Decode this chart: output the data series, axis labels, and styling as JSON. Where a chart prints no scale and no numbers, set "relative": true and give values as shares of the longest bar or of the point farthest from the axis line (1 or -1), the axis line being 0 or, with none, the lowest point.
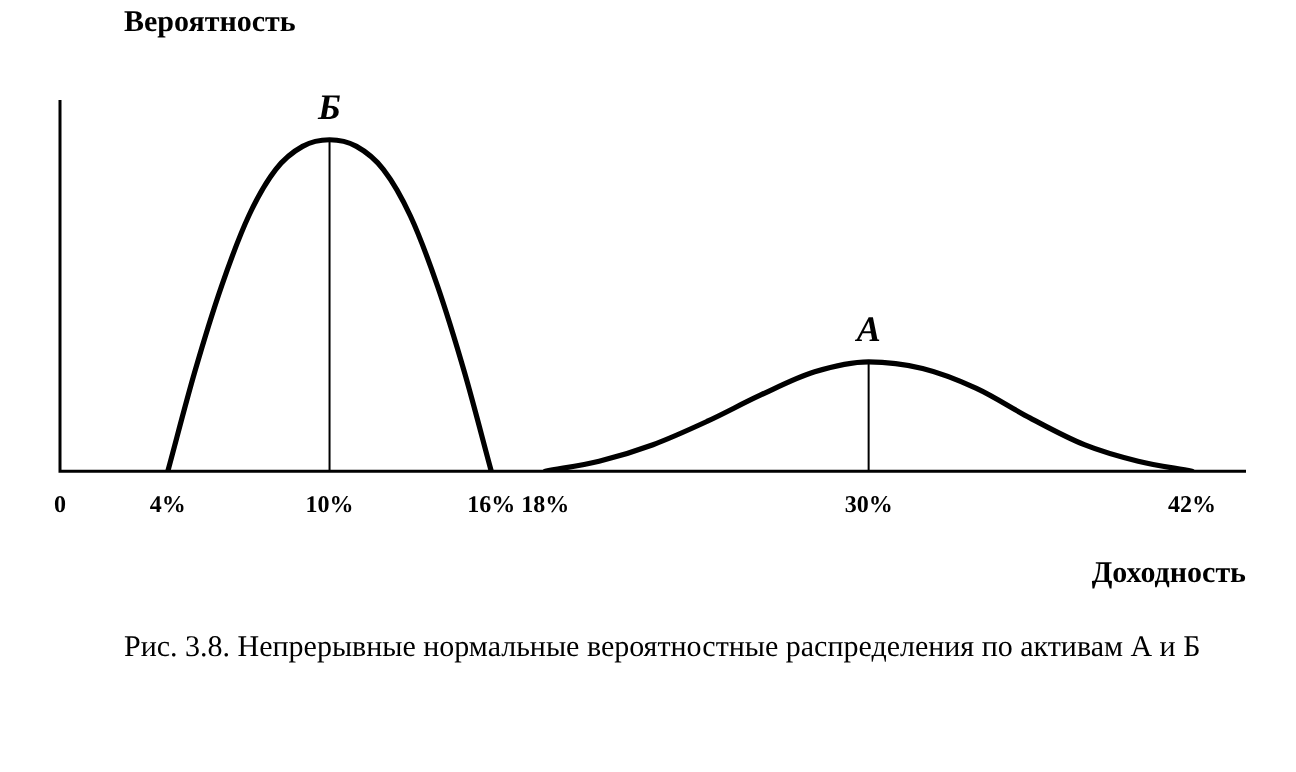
{
  "chart_data": {
    "type": "line",
    "relative": true,
    "xlabel": "Доходность",
    "ylabel": "Вероятность",
    "xlim": [
      0,
      44
    ],
    "xticks": [
      {
        "value": 0,
        "label": "0"
      },
      {
        "value": 4,
        "label": "4%"
      },
      {
        "value": 10,
        "label": "10%"
      },
      {
        "value": 16,
        "label": "16%"
      },
      {
        "value": 18,
        "label": "18%"
      },
      {
        "value": 30,
        "label": "30%"
      },
      {
        "value": 42,
        "label": "42%"
      }
    ],
    "series": [
      {
        "color": "#000000",
        "x": [
          4,
          5,
          6,
          7,
          8,
          9,
          10,
          11,
          12,
          13,
          14,
          15,
          16
        ],
        "values": [
          0,
          0.3,
          0.56,
          0.77,
          0.91,
          0.98,
          1,
          0.98,
          0.91,
          0.77,
          0.56,
          0.3,
          0
        ]
      },
      {
        "color": "#000000",
        "x": [
          18,
          20,
          22,
          24,
          26,
          28,
          30,
          32,
          34,
          36,
          38,
          40,
          42
        ],
        "values": [
          0,
          0.03,
          0.08,
          0.15,
          0.23,
          0.3,
          0.33,
          0.31,
          0.25,
          0.16,
          0.08,
          0.03,
          0
        ]
      },
      {
        "color": "#000000",
        "x": [
          10,
          10
        ],
        "values": [
          0,
          1
        ]
      },
      {
        "color": "#000000",
        "x": [
          30,
          30
        ],
        "values": [
          0,
          0.33
        ]
      }
    ],
    "annotations": [
      {
        "text": "Б",
        "x": 10,
        "y": 1
      },
      {
        "text": "А",
        "x": 30,
        "y": 0.33
      },
      "Рис. 3.8. Непрерывные нормальные вероятностные распределения по активам А и Б"
    ],
    "grid": false,
    "legend": false,
    "marker": "none",
    "line_style": "solid"
  }
}
